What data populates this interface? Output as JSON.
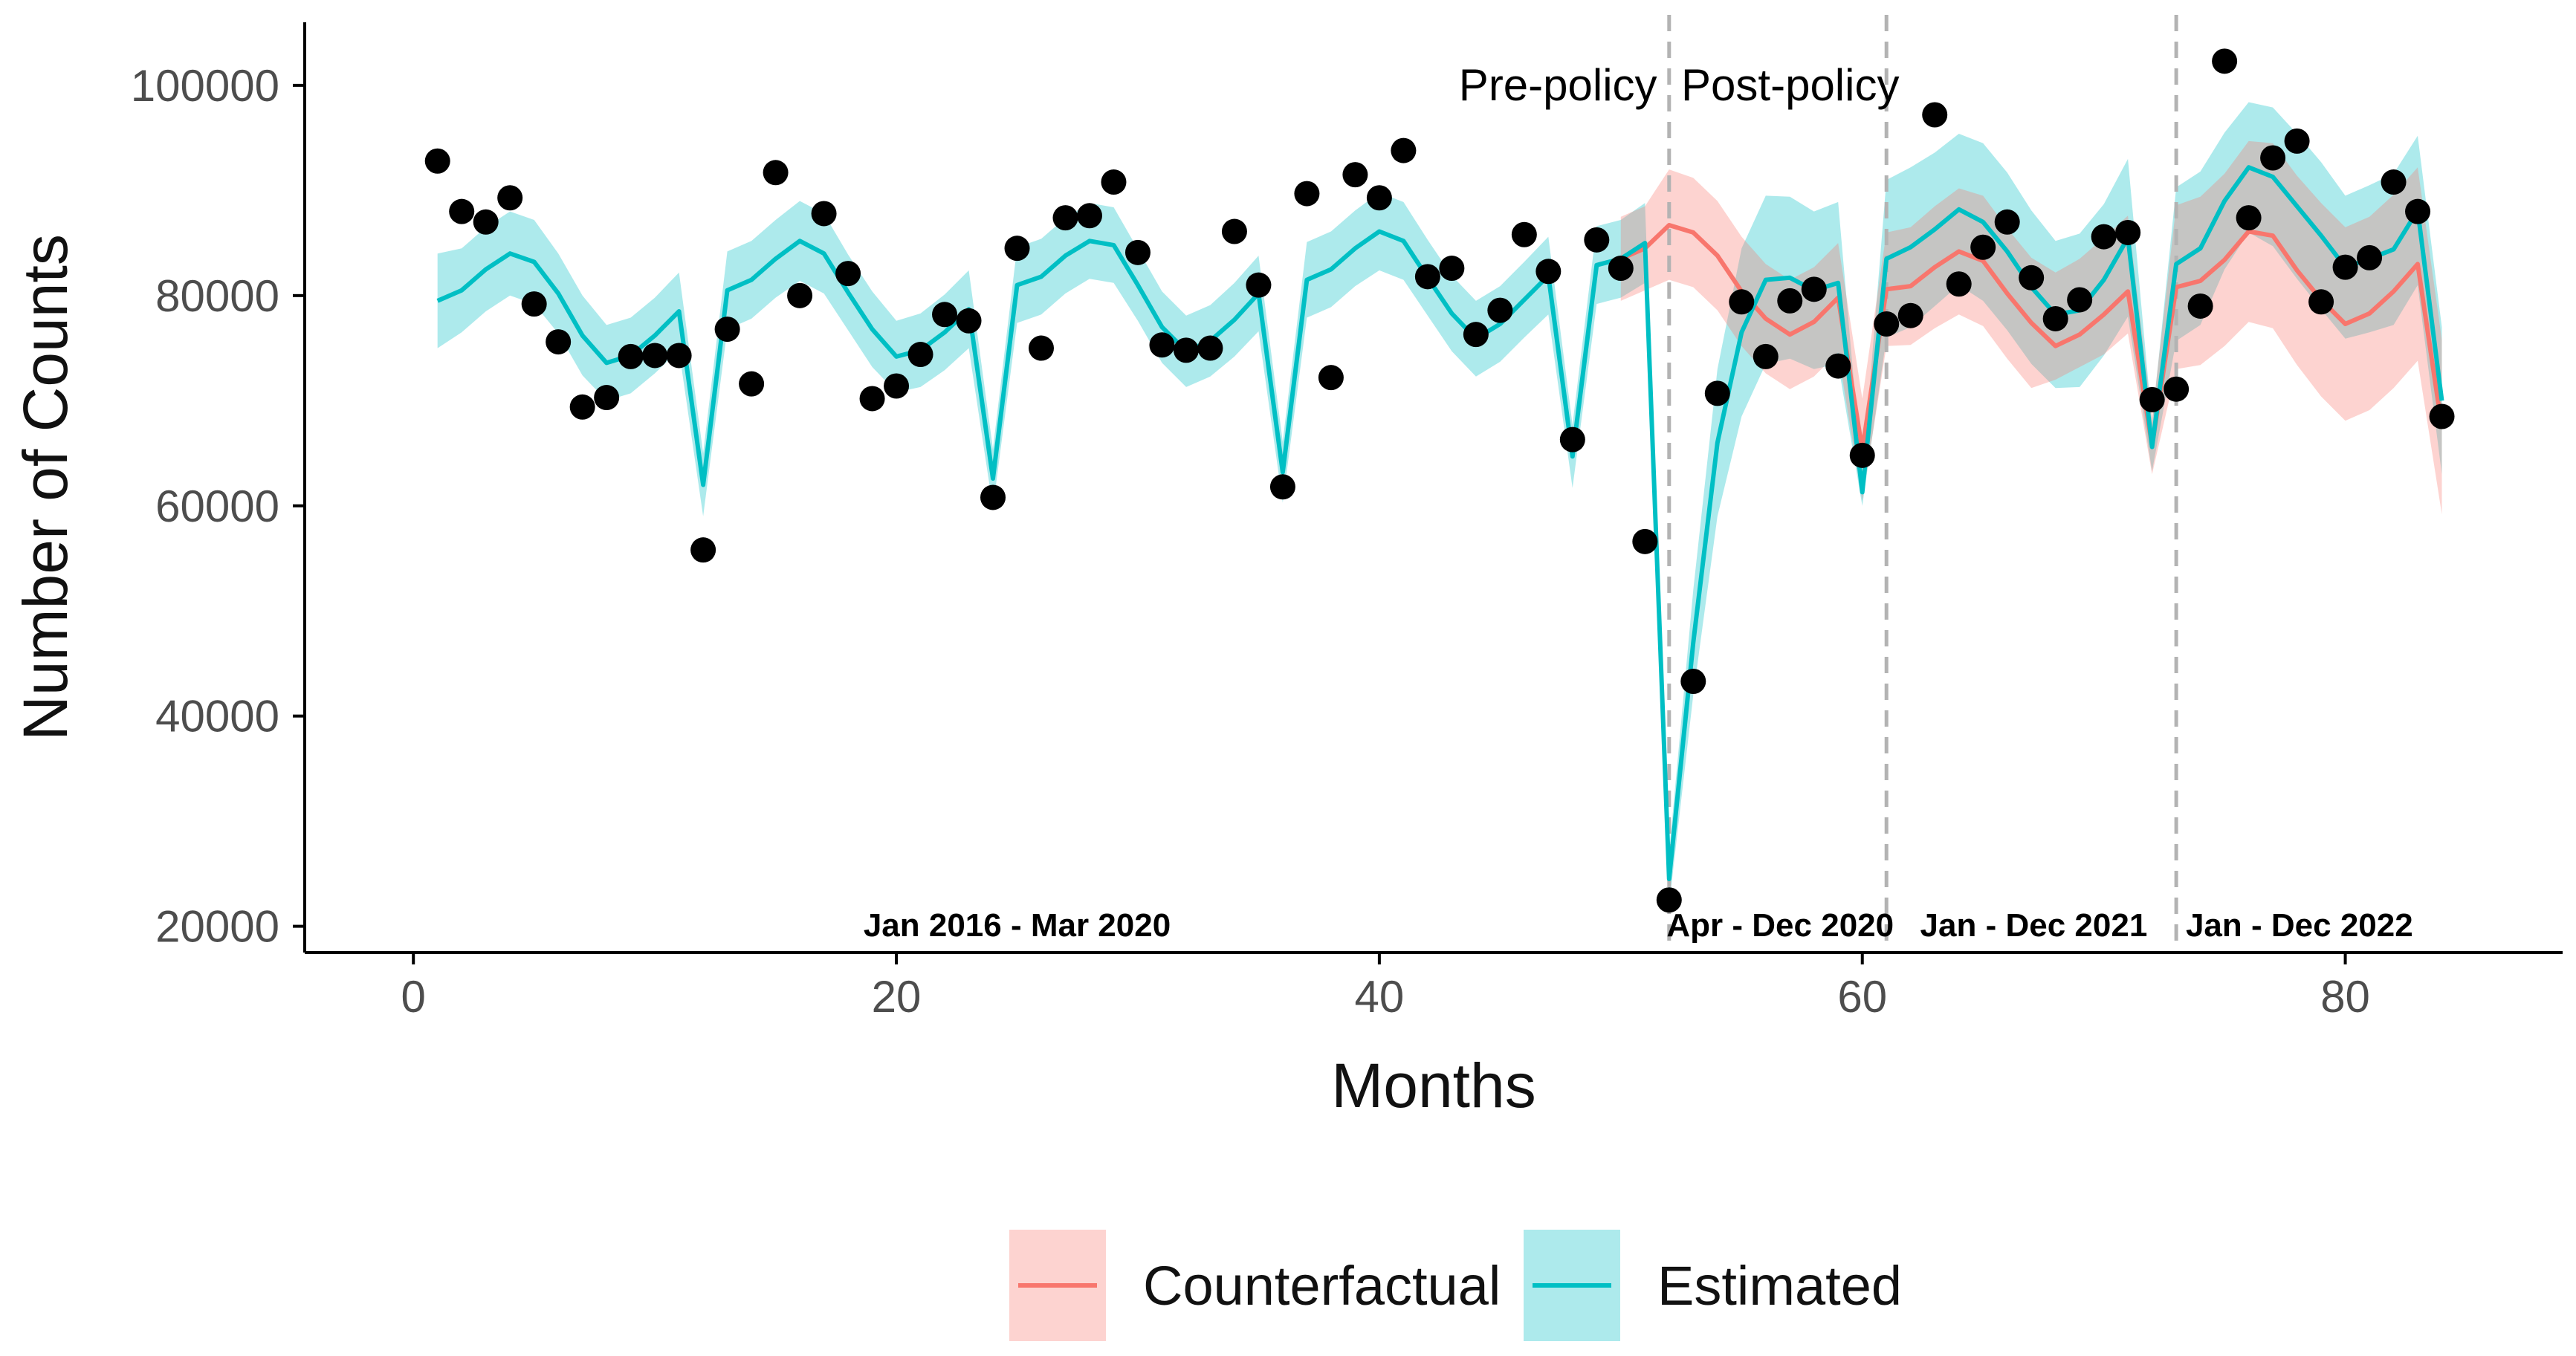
{
  "chart_data": {
    "type": "line",
    "title": "",
    "xlabel": "Months",
    "ylabel": "Number of Counts",
    "xlim": [
      -4.5,
      89
    ],
    "ylim": [
      17500,
      106000
    ],
    "xticks": [
      0,
      20,
      40,
      60,
      80
    ],
    "yticks": [
      20000,
      40000,
      60000,
      80000,
      100000
    ],
    "xtick_labels": [
      "0",
      "20",
      "40",
      "60",
      "80"
    ],
    "ytick_labels": [
      "20000",
      "40000",
      "60000",
      "80000",
      "100000"
    ],
    "grid": false,
    "legend_position": "bottom",
    "policy_lines": [
      52,
      61,
      73
    ],
    "annotations": {
      "pre_policy": {
        "text": "Pre-policy",
        "x": 51.5,
        "y": 100000
      },
      "post_policy": {
        "text": "Post-policy",
        "x": 52.5,
        "y": 100000
      },
      "periods": [
        {
          "text": "Jan 2016 - Mar 2020",
          "x": 25
        },
        {
          "text": "Apr - Dec 2020",
          "x": 56.6
        },
        {
          "text": "Jan - Dec 2021",
          "x": 67.1
        },
        {
          "text": "Jan - Dec 2022",
          "x": 78.1
        }
      ]
    },
    "colors": {
      "counterfactual": "#f8766d",
      "counterfactual_band": "#f8766d",
      "estimated": "#00bfc4",
      "estimated_band": "#00bfc4",
      "points": "#000000",
      "vline": "#b3b3b3"
    },
    "legend": [
      {
        "name": "Counterfactual",
        "color": "#f8766d"
      },
      {
        "name": "Estimated",
        "color": "#00bfc4"
      }
    ],
    "observed": {
      "x": [
        1,
        2,
        3,
        4,
        5,
        6,
        7,
        8,
        9,
        10,
        11,
        12,
        13,
        14,
        15,
        16,
        17,
        18,
        19,
        20,
        21,
        22,
        23,
        24,
        25,
        26,
        27,
        28,
        29,
        30,
        31,
        32,
        33,
        34,
        35,
        36,
        37,
        38,
        39,
        40,
        41,
        42,
        43,
        44,
        45,
        46,
        47,
        48,
        49,
        50,
        51,
        52,
        53,
        54,
        55,
        56,
        57,
        58,
        59,
        60,
        61,
        62,
        63,
        64,
        65,
        66,
        67,
        68,
        69,
        70,
        71,
        72,
        73,
        74,
        75,
        76,
        77,
        78,
        79,
        80,
        81,
        82,
        83,
        84
      ],
      "y": [
        92800,
        88000,
        87000,
        89300,
        79200,
        75600,
        69400,
        70300,
        74200,
        74300,
        74300,
        55800,
        76800,
        71600,
        91700,
        80000,
        87800,
        82100,
        70200,
        71400,
        74400,
        78200,
        77600,
        60800,
        84500,
        75000,
        87400,
        87600,
        90800,
        84100,
        75300,
        74800,
        75000,
        86100,
        81000,
        61800,
        89700,
        72200,
        91500,
        89300,
        93800,
        81800,
        82600,
        76300,
        78600,
        85800,
        82300,
        66300,
        85300,
        82600,
        56600,
        22500,
        43300,
        70700,
        79400,
        74200,
        79500,
        80600,
        73300,
        64800,
        77300,
        78100,
        97200,
        81100,
        84600,
        87000,
        81700,
        77800,
        79600,
        85600,
        86000,
        70100,
        71100,
        79000,
        102300,
        87400,
        93100,
        94700,
        79400,
        82700,
        83600,
        90800,
        88000,
        68500
      ]
    },
    "estimated": {
      "x": [
        1,
        2,
        3,
        4,
        5,
        6,
        7,
        8,
        9,
        10,
        11,
        12,
        13,
        14,
        15,
        16,
        17,
        18,
        19,
        20,
        21,
        22,
        23,
        24,
        25,
        26,
        27,
        28,
        29,
        30,
        31,
        32,
        33,
        34,
        35,
        36,
        37,
        38,
        39,
        40,
        41,
        42,
        43,
        44,
        45,
        46,
        47,
        48,
        49,
        50,
        51,
        52,
        53,
        54,
        55,
        56,
        57,
        58,
        59,
        60,
        61,
        62,
        63,
        64,
        65,
        66,
        67,
        68,
        69,
        70,
        71,
        72,
        73,
        74,
        75,
        76,
        77,
        78,
        79,
        80,
        81,
        82,
        83,
        84
      ],
      "y": [
        79500,
        80500,
        82500,
        84000,
        83200,
        80200,
        76200,
        73600,
        74300,
        76200,
        78500,
        62000,
        80500,
        81500,
        83500,
        85200,
        84000,
        80300,
        76800,
        74200,
        74800,
        76500,
        78700,
        62600,
        81000,
        81800,
        83800,
        85200,
        84800,
        81000,
        77000,
        74700,
        75700,
        77700,
        80200,
        63200,
        81500,
        82500,
        84500,
        86100,
        85200,
        81700,
        78300,
        75900,
        77300,
        79600,
        81900,
        64700,
        82900,
        83500,
        85000,
        24500,
        47000,
        66000,
        76500,
        81500,
        81700,
        80500,
        81200,
        61300,
        83500,
        84600,
        86300,
        88200,
        87000,
        84200,
        80800,
        78200,
        78600,
        81500,
        85500,
        65600,
        83000,
        84500,
        89000,
        92200,
        91300,
        88500,
        85700,
        82700,
        83500,
        84400,
        88100,
        70000
      ]
    },
    "estimated_band": {
      "x": [
        1,
        2,
        3,
        4,
        5,
        6,
        7,
        8,
        9,
        10,
        11,
        12,
        13,
        14,
        15,
        16,
        17,
        18,
        19,
        20,
        21,
        22,
        23,
        24,
        25,
        26,
        27,
        28,
        29,
        30,
        31,
        32,
        33,
        34,
        35,
        36,
        37,
        38,
        39,
        40,
        41,
        42,
        43,
        44,
        45,
        46,
        47,
        48,
        49,
        50,
        51,
        52,
        53,
        54,
        55,
        56,
        57,
        58,
        59,
        60,
        61,
        62,
        63,
        64,
        65,
        66,
        67,
        68,
        69,
        70,
        71,
        72,
        73,
        74,
        75,
        76,
        77,
        78,
        79,
        80,
        81,
        82,
        83,
        84
      ],
      "lower": [
        75000,
        76500,
        78500,
        80000,
        79200,
        76400,
        72400,
        70000,
        70700,
        72600,
        74800,
        59000,
        76800,
        77800,
        79800,
        81400,
        80200,
        76700,
        73200,
        70800,
        71300,
        72900,
        75000,
        59800,
        77400,
        78200,
        80200,
        81600,
        81200,
        77600,
        73600,
        71300,
        72300,
        74200,
        76600,
        60300,
        77900,
        78900,
        80900,
        82400,
        81500,
        78100,
        74700,
        72300,
        73700,
        76000,
        78200,
        61700,
        79200,
        79800,
        81200,
        22000,
        42000,
        59000,
        68500,
        73500,
        74000,
        73000,
        73500,
        60000,
        76000,
        77000,
        79000,
        81000,
        79500,
        76700,
        73500,
        71200,
        71300,
        74300,
        78000,
        63300,
        75700,
        77200,
        82500,
        86000,
        84700,
        81600,
        78700,
        75900,
        76500,
        77200,
        81000,
        63000
      ],
      "upper": [
        84000,
        84500,
        86500,
        88000,
        87200,
        84000,
        80000,
        77200,
        77900,
        79800,
        82200,
        65000,
        84200,
        85200,
        87200,
        89000,
        87800,
        83900,
        80400,
        77600,
        78300,
        80100,
        82400,
        65400,
        84600,
        85400,
        87400,
        88800,
        88400,
        84400,
        80400,
        78100,
        79100,
        81200,
        83800,
        66100,
        85100,
        86100,
        88100,
        89800,
        88900,
        85300,
        81900,
        79500,
        80900,
        83200,
        85600,
        67700,
        86600,
        87200,
        88800,
        27000,
        52000,
        73000,
        84500,
        89500,
        89400,
        88000,
        88900,
        62600,
        91000,
        92200,
        93600,
        95400,
        94500,
        91700,
        88100,
        85200,
        85900,
        88700,
        93000,
        67900,
        90300,
        91800,
        95500,
        98400,
        97900,
        95400,
        92700,
        89500,
        90500,
        91600,
        95200,
        77000
      ]
    },
    "counterfactual": {
      "x": [
        50,
        51,
        52,
        53,
        54,
        55,
        56,
        57,
        58,
        59,
        60,
        61,
        62,
        63,
        64,
        65,
        66,
        67,
        68,
        69,
        70,
        71,
        72,
        73,
        74,
        75,
        76,
        77,
        78,
        79,
        80,
        81,
        82,
        83,
        84
      ],
      "y": [
        83500,
        84500,
        86700,
        86000,
        83800,
        80400,
        77800,
        76300,
        77500,
        79800,
        65300,
        80600,
        80900,
        82700,
        84200,
        83300,
        80200,
        77400,
        75200,
        76300,
        78200,
        80400,
        65700,
        80800,
        81400,
        83400,
        86100,
        85700,
        82400,
        79600,
        77300,
        78300,
        80400,
        83000,
        67500
      ]
    },
    "counterfactual_band": {
      "x": [
        50,
        51,
        52,
        53,
        54,
        55,
        56,
        57,
        58,
        59,
        60,
        61,
        62,
        63,
        64,
        65,
        66,
        67,
        68,
        69,
        70,
        71,
        72,
        73,
        74,
        75,
        76,
        77,
        78,
        79,
        80,
        81,
        82,
        83,
        84
      ],
      "lower": [
        79500,
        80500,
        81500,
        80800,
        78600,
        75200,
        72600,
        71100,
        72300,
        74600,
        60500,
        75200,
        75300,
        76900,
        78200,
        77100,
        74000,
        71200,
        72000,
        73200,
        74400,
        76400,
        63000,
        73000,
        73400,
        75200,
        77500,
        76900,
        73400,
        70400,
        68100,
        69100,
        71200,
        73800,
        59200
      ],
      "upper": [
        87500,
        88500,
        92000,
        91200,
        89000,
        85600,
        83000,
        81500,
        82700,
        85000,
        70200,
        86000,
        86500,
        88500,
        90200,
        89500,
        86400,
        83600,
        82200,
        83500,
        85500,
        87600,
        68400,
        88600,
        89400,
        91600,
        94700,
        94500,
        91400,
        88800,
        86500,
        87500,
        89600,
        92200,
        75800
      ]
    }
  }
}
